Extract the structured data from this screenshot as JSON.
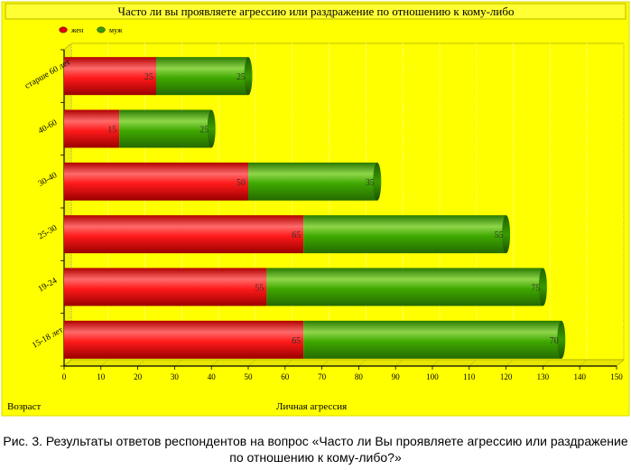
{
  "chart_data": {
    "type": "bar",
    "orientation": "horizontal",
    "stacked": true,
    "title": "Часто ли вы проявляете агрессию или раздражение по отношению к кому-либо",
    "categories": [
      "15-18 лет",
      "19-24",
      "25-30",
      "30-40",
      "40-60",
      "старше 60 лет"
    ],
    "series": [
      {
        "name": "жен",
        "values": [
          65,
          55,
          65,
          50,
          15,
          25
        ],
        "color": "#e00000"
      },
      {
        "name": "муж",
        "values": [
          70,
          75,
          55,
          35,
          25,
          25
        ],
        "color": "#3a9a00"
      }
    ],
    "xlabel": "Личная агрессия",
    "ylabel": "Возраст",
    "xlim": [
      0,
      150
    ],
    "xticks": [
      0,
      10,
      20,
      30,
      40,
      50,
      60,
      70,
      80,
      90,
      100,
      110,
      120,
      130,
      140,
      150
    ],
    "grid": true,
    "legend": "top-left",
    "background": "#ffff00"
  },
  "caption": "Рис. 3. Результаты ответов респондентов на вопрос «Часто ли Вы проявляете агрессию или раздражение по отношению к кому-либо?»"
}
